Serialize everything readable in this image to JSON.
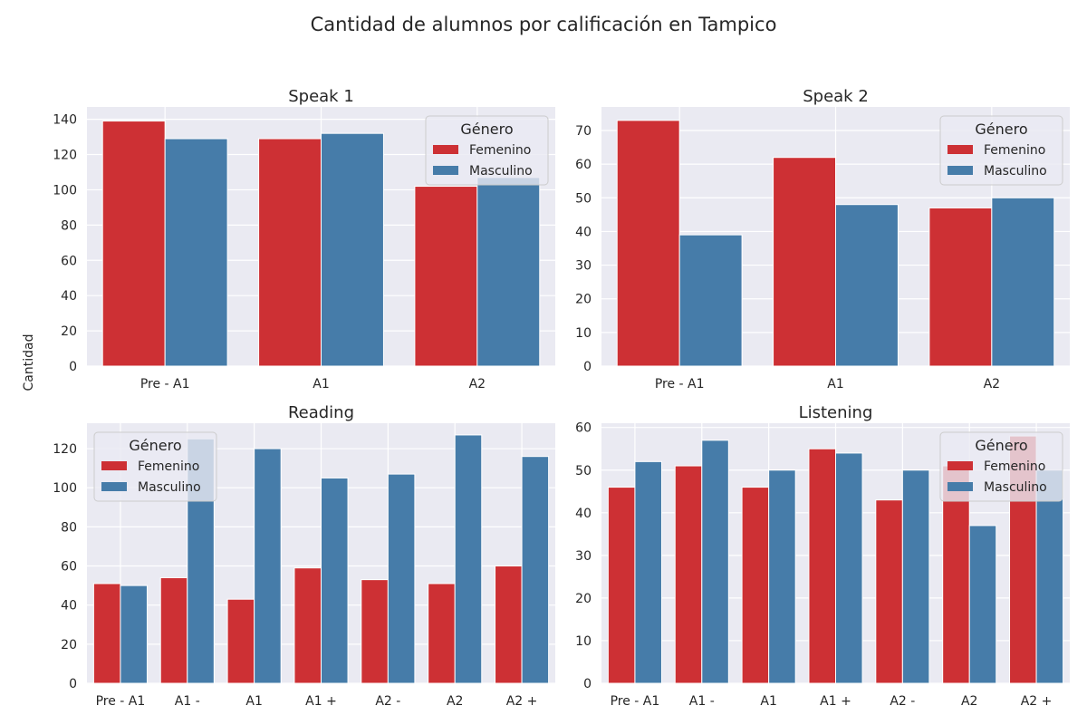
{
  "title": "Cantidad de alumnos por calificación en Tampico",
  "ylabel": "Cantidad",
  "colors": {
    "Femenino": "#cd3034",
    "Masculino": "#467ca9",
    "panel_bg": "#eaeaf2",
    "grid": "#ffffff"
  },
  "legend": {
    "title": "Género"
  },
  "chart_data": [
    {
      "type": "bar",
      "title": "Speak 1",
      "categories": [
        "Pre - A1",
        "A1",
        "A2"
      ],
      "series": [
        {
          "name": "Femenino",
          "values": [
            139,
            129,
            102
          ]
        },
        {
          "name": "Masculino",
          "values": [
            129,
            132,
            107
          ]
        }
      ],
      "ylim": [
        0,
        147
      ],
      "yticks": [
        0,
        20,
        40,
        60,
        80,
        100,
        120,
        140
      ],
      "grid": true,
      "legend_position": "upper right"
    },
    {
      "type": "bar",
      "title": "Speak 2",
      "categories": [
        "Pre - A1",
        "A1",
        "A2"
      ],
      "series": [
        {
          "name": "Femenino",
          "values": [
            73,
            62,
            47
          ]
        },
        {
          "name": "Masculino",
          "values": [
            39,
            48,
            50
          ]
        }
      ],
      "ylim": [
        0,
        77
      ],
      "yticks": [
        0,
        10,
        20,
        30,
        40,
        50,
        60,
        70
      ],
      "grid": true,
      "legend_position": "upper right"
    },
    {
      "type": "bar",
      "title": "Reading",
      "categories": [
        "Pre - A1",
        "A1 -",
        "A1",
        "A1 +",
        "A2 -",
        "A2",
        "A2 +"
      ],
      "series": [
        {
          "name": "Femenino",
          "values": [
            51,
            54,
            43,
            59,
            53,
            51,
            60
          ]
        },
        {
          "name": "Masculino",
          "values": [
            50,
            125,
            120,
            105,
            107,
            127,
            116
          ]
        }
      ],
      "ylim": [
        0,
        133
      ],
      "yticks": [
        0,
        20,
        40,
        60,
        80,
        100,
        120
      ],
      "grid": true,
      "legend_position": "upper left"
    },
    {
      "type": "bar",
      "title": "Listening",
      "categories": [
        "Pre - A1",
        "A1 -",
        "A1",
        "A1 +",
        "A2 -",
        "A2",
        "A2 +"
      ],
      "series": [
        {
          "name": "Femenino",
          "values": [
            46,
            51,
            46,
            55,
            43,
            51,
            58
          ]
        },
        {
          "name": "Masculino",
          "values": [
            52,
            57,
            50,
            54,
            50,
            37,
            50
          ]
        }
      ],
      "ylim": [
        0,
        61
      ],
      "yticks": [
        0,
        10,
        20,
        30,
        40,
        50,
        60
      ],
      "grid": true,
      "legend_position": "upper right"
    }
  ]
}
